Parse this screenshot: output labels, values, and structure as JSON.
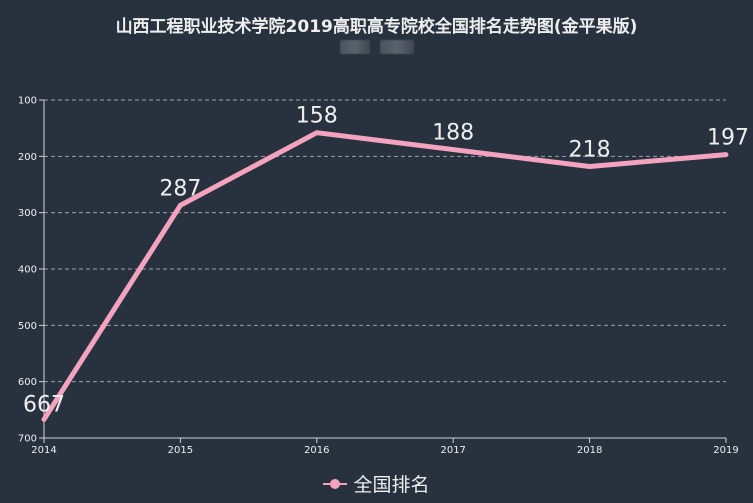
{
  "header": {
    "title": "山西工程职业技术学院2019高职高专院校全国排名走势图(金平果版)",
    "subtitle_redacted": true
  },
  "legend": {
    "label": "全国排名",
    "color": "#f4a3bf"
  },
  "colors": {
    "background": "#28323f",
    "line": "#f4a3bf",
    "axis": "#cfd3d8",
    "grid": "#9aa0a8",
    "text": "#eeeeee"
  },
  "chart_data": {
    "type": "line",
    "title": "山西工程职业技术学院2019高职高专院校全国排名走势图(金平果版)",
    "xlabel": "",
    "ylabel": "",
    "categories": [
      "2014",
      "2015",
      "2016",
      "2017",
      "2018",
      "2019"
    ],
    "series": [
      {
        "name": "全国排名",
        "values": [
          667,
          287,
          158,
          188,
          218,
          197
        ]
      }
    ],
    "y_ticks": [
      "100",
      "200",
      "300",
      "400",
      "500",
      "600",
      "700"
    ],
    "ylim": [
      100,
      700
    ],
    "y_inverted": true,
    "grid": true,
    "legend_position": "bottom"
  }
}
